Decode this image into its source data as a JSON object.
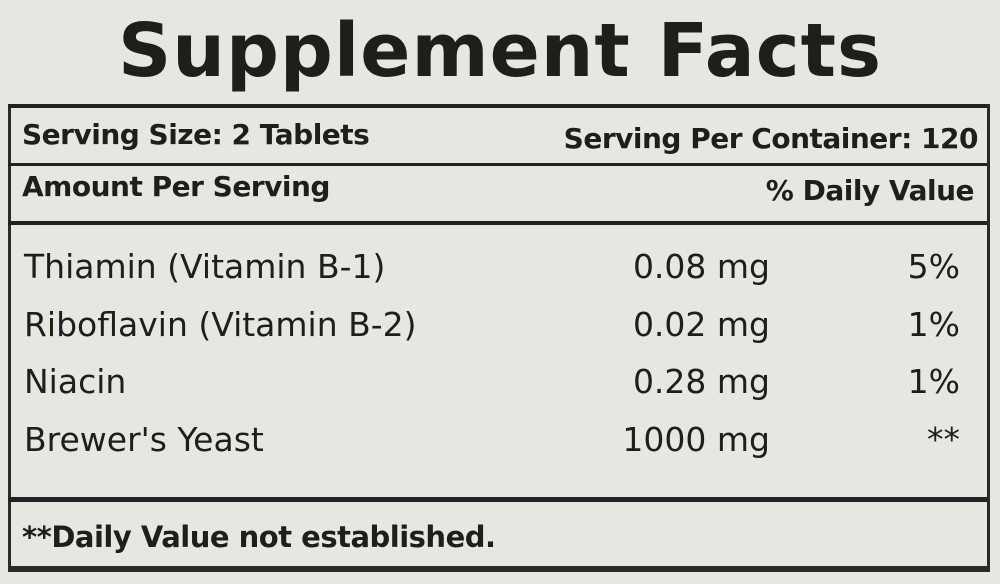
{
  "title": "Supplement Facts",
  "serving_size": "Serving Size: 2 Tablets",
  "servings_per_container": "Serving Per Container: 120",
  "amount_per_serving": "Amount Per Serving",
  "daily_value_header": "% Daily Value",
  "rows": [
    {
      "name": "Thiamin (Vitamin B-1)",
      "amount": "0.08 mg",
      "dv": "5%"
    },
    {
      "name": "Riboflavin (Vitamin B-2)",
      "amount": "0.02 mg",
      "dv": "1%"
    },
    {
      "name": "Niacin",
      "amount": "0.28 mg",
      "dv": "1%"
    },
    {
      "name": "Brewer's Yeast",
      "amount": "1000 mg",
      "dv": "**"
    }
  ],
  "footnote": "**Daily Value not established."
}
